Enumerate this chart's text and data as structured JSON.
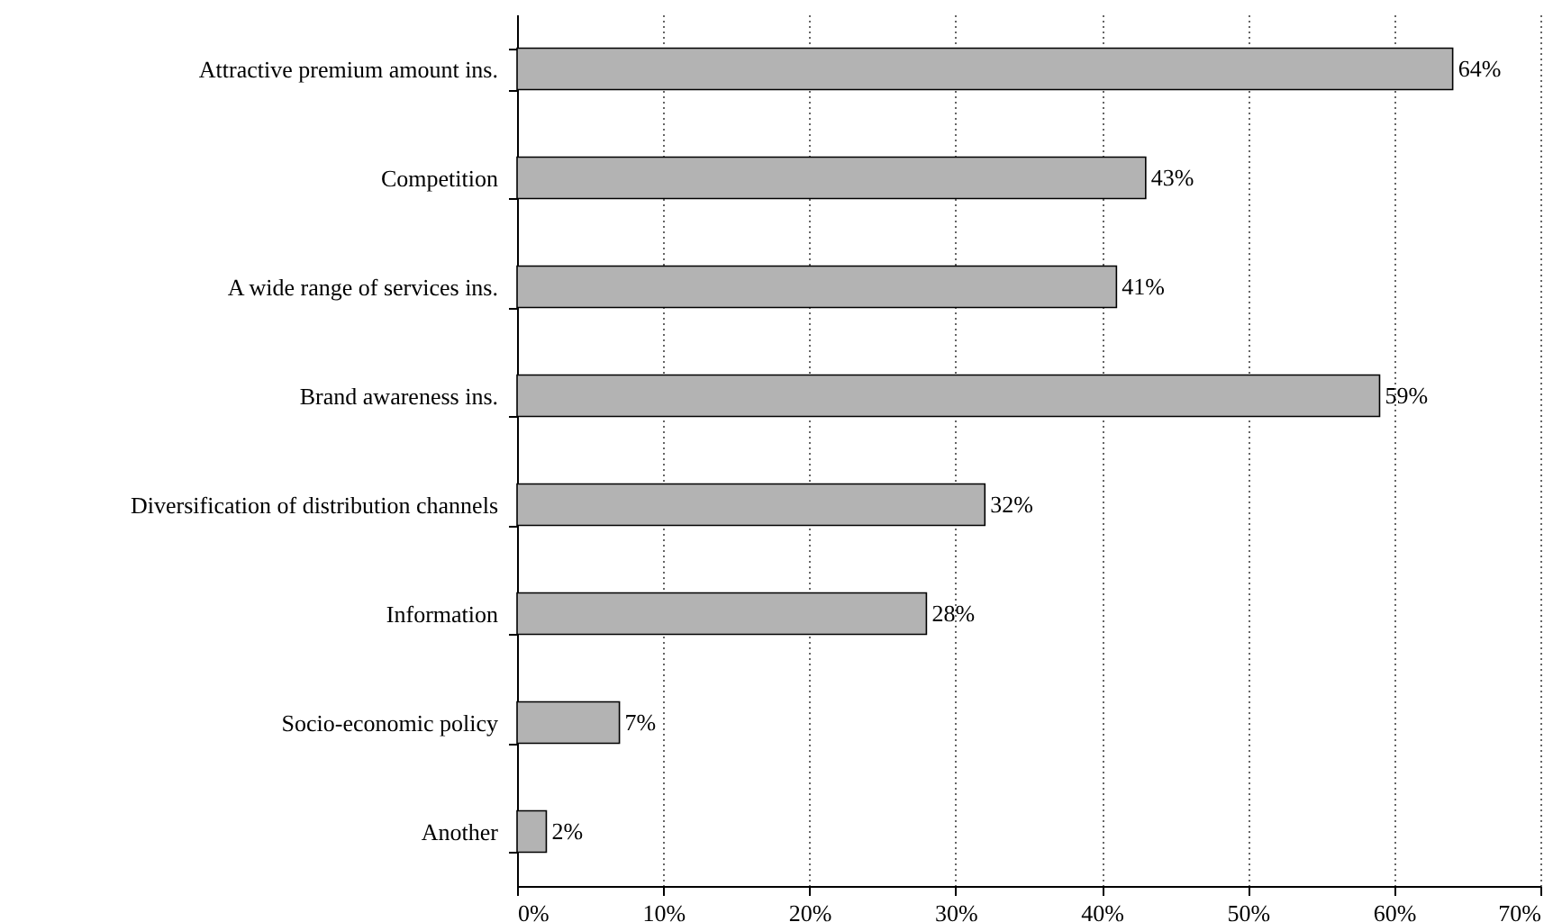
{
  "chart_data": {
    "type": "bar",
    "orientation": "horizontal",
    "categories": [
      "Attractive premium amount ins.",
      "Competition",
      "A wide range of services ins.",
      "Brand awareness ins.",
      "Diversification of distribution channels",
      "Information",
      "Socio-economic policy",
      "Another"
    ],
    "values": [
      64,
      43,
      41,
      59,
      32,
      28,
      7,
      2
    ],
    "color": "#b3b3b3",
    "value_labels": [
      "64%",
      "43%",
      "41%",
      "59%",
      "32%",
      "28%",
      "7%",
      "2%"
    ],
    "xlim": [
      0,
      70
    ],
    "xticks": [
      {
        "value": 0,
        "label": "0%"
      },
      {
        "value": 10,
        "label": "10%"
      },
      {
        "value": 20,
        "label": "20%"
      },
      {
        "value": 30,
        "label": "30%"
      },
      {
        "value": 40,
        "label": "40%"
      },
      {
        "value": 50,
        "label": "50%"
      },
      {
        "value": 60,
        "label": "60%"
      },
      {
        "value": 70,
        "label": "70%"
      }
    ],
    "grid": "x"
  }
}
